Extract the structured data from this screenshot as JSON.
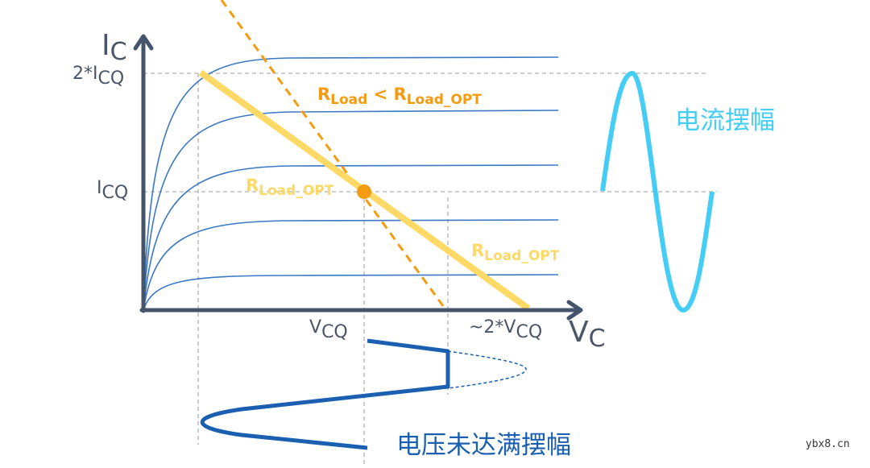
{
  "axes": {
    "y_main": "I",
    "y_sub": "C",
    "x_main": "V",
    "x_sub": "C",
    "y_tick_2icq_prefix": "2*I",
    "y_tick_2icq_sub": "CQ",
    "y_tick_icq_main": "I",
    "y_tick_icq_sub": "CQ",
    "x_tick_vcq_main": "V",
    "x_tick_vcq_sub": "CQ",
    "x_tick_2vcq_prefix": "~2*V",
    "x_tick_2vcq_sub": "CQ"
  },
  "labels": {
    "r_less_main1": "R",
    "r_less_sub1": "Load",
    "r_less_mid": " < R",
    "r_less_sub2": "Load_OPT",
    "r_opt_main": "R",
    "r_opt_sub": "Load_OPT",
    "current_swing": "电流摆幅",
    "voltage_swing": "电压未达满摆幅",
    "watermark": "ybx8.cn"
  },
  "colors": {
    "axis": "#44546a",
    "curves": "#3a78c4",
    "load_opt": "#FFD966",
    "load_less": "#F39C12",
    "current_sine": "#45CDF5",
    "voltage_wave": "#1A5FB0"
  }
}
